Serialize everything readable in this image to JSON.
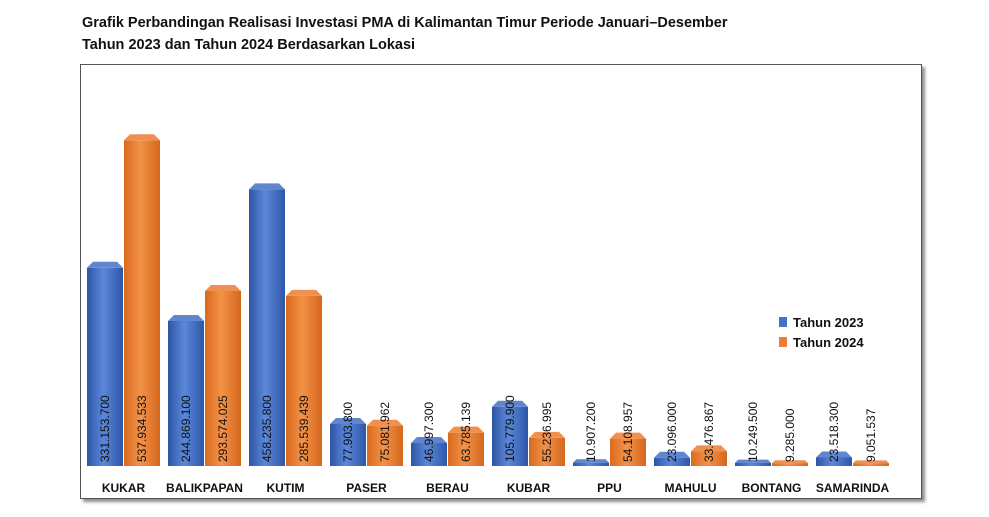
{
  "title": {
    "line1": "Grafik Perbandingan Realisasi Investasi PMA di Kalimantan Timur Periode Januari–Desember",
    "line2": "Tahun 2023 dan Tahun 2024 Berdasarkan Lokasi"
  },
  "chart_data": {
    "type": "bar",
    "categories": [
      "KUKAR",
      "BALIKPAPAN",
      "KUTIM",
      "PASER",
      "BERAU",
      "KUBAR",
      "PPU",
      "MAHULU",
      "BONTANG",
      "SAMARINDA"
    ],
    "series": [
      {
        "name": "Tahun 2023",
        "color": "#4472C4",
        "values": [
          331153.7,
          244869.1,
          458235.8,
          77903.8,
          46997.3,
          105779.9,
          10907.2,
          23096.0,
          10249.5,
          23518.3
        ],
        "labels": [
          "331.153.700",
          "244.869.100",
          "458.235.800",
          "77.903.800",
          "46.997.300",
          "105.779.900",
          "10.907.200",
          "23.096.000",
          "10.249.500",
          "23.518.300"
        ]
      },
      {
        "name": "Tahun 2024",
        "color": "#ED7D31",
        "values": [
          537934.533,
          293574.025,
          285539.439,
          75081.962,
          63785.139,
          55236.995,
          54108.957,
          33476.867,
          9285.0,
          9051.537
        ],
        "labels": [
          "537.934.533",
          "293.574.025",
          "285.539.439",
          "75.081.962",
          "63.785.139",
          "55.236.995",
          "54.108.957",
          "33.476.867",
          "9.285.000",
          "9.051.537"
        ]
      }
    ],
    "ylim": [
      0,
      600000
    ],
    "grid": false,
    "legend_position": "right"
  }
}
